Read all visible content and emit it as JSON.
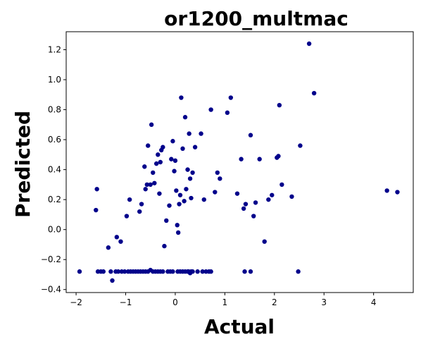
{
  "chart_data": {
    "type": "scatter",
    "title": "or1200_multmac",
    "xlabel": "Actual",
    "ylabel": "Predicted",
    "xlim": [
      -2.2,
      4.8
    ],
    "ylim": [
      -0.42,
      1.32
    ],
    "xticks": [
      -2,
      -1,
      0,
      1,
      2,
      3,
      4
    ],
    "yticks": [
      -0.4,
      -0.2,
      0.0,
      0.2,
      0.4,
      0.6,
      0.8,
      1.0,
      1.2
    ],
    "xtick_labels": [
      "−2",
      "−1",
      "0",
      "1",
      "2",
      "3",
      "4"
    ],
    "ytick_labels": [
      "−0.4",
      "−0.2",
      "0.0",
      "0.2",
      "0.4",
      "0.6",
      "0.8",
      "1.0",
      "1.2"
    ],
    "grid": false,
    "marker_color": "#00008b",
    "series": [
      {
        "x": [
          -1.93,
          -1.56,
          -1.5,
          -1.45,
          -1.3,
          -1.27,
          -1.2,
          -1.15,
          -1.08,
          -1.02,
          -0.95,
          -0.9,
          -0.85,
          -0.8,
          -0.75,
          -0.7,
          -0.65,
          -0.6,
          -0.55,
          -0.5,
          -0.45,
          -0.4,
          -0.35,
          -0.3,
          -0.25,
          -0.15,
          -0.1,
          -0.05,
          0.05,
          0.1,
          0.15,
          0.2,
          0.25,
          0.27,
          0.3,
          0.32,
          0.35,
          0.45,
          0.55,
          0.62,
          0.68,
          0.72,
          1.4,
          1.52,
          2.48,
          -1.6,
          -1.58,
          -1.35,
          -1.18,
          -1.1,
          -0.98,
          -0.92,
          -0.72,
          -0.68,
          -0.62,
          -0.6,
          -0.57,
          -0.55,
          -0.5,
          -0.48,
          -0.45,
          -0.42,
          -0.38,
          -0.35,
          -0.32,
          -0.3,
          -0.28,
          -0.25,
          -0.22,
          -0.18,
          -0.12,
          -0.08,
          -0.05,
          -0.02,
          0.0,
          0.02,
          0.04,
          0.06,
          0.08,
          0.1,
          0.12,
          0.15,
          0.18,
          0.2,
          0.22,
          0.25,
          0.28,
          0.3,
          0.32,
          0.35,
          0.4,
          0.52,
          0.58,
          0.72,
          0.8,
          0.85,
          0.9,
          1.05,
          1.12,
          1.25,
          1.33,
          1.38,
          1.42,
          1.52,
          1.58,
          1.62,
          1.7,
          1.8,
          1.88,
          1.95,
          2.05,
          2.08,
          2.1,
          2.15,
          2.35,
          2.52,
          2.7,
          2.8,
          4.27,
          4.48
        ],
        "y": [
          -0.28,
          -0.28,
          -0.28,
          -0.28,
          -0.28,
          -0.34,
          -0.28,
          -0.28,
          -0.28,
          -0.28,
          -0.28,
          -0.28,
          -0.28,
          -0.28,
          -0.28,
          -0.28,
          -0.28,
          -0.28,
          -0.28,
          -0.27,
          -0.28,
          -0.28,
          -0.28,
          -0.28,
          -0.28,
          -0.28,
          -0.28,
          -0.28,
          -0.28,
          -0.28,
          -0.28,
          -0.28,
          -0.28,
          -0.28,
          -0.29,
          -0.28,
          -0.28,
          -0.28,
          -0.28,
          -0.28,
          -0.28,
          -0.28,
          -0.28,
          -0.28,
          -0.28,
          0.13,
          0.27,
          -0.12,
          -0.05,
          -0.08,
          0.09,
          0.2,
          0.12,
          0.17,
          0.42,
          0.27,
          0.3,
          0.56,
          0.3,
          0.7,
          0.38,
          0.31,
          0.44,
          0.5,
          0.24,
          0.45,
          0.53,
          0.55,
          -0.11,
          0.06,
          0.16,
          0.47,
          0.59,
          0.39,
          0.46,
          0.26,
          0.03,
          -0.02,
          0.17,
          0.23,
          0.88,
          0.54,
          0.19,
          0.75,
          0.27,
          0.4,
          0.64,
          0.34,
          0.21,
          0.38,
          0.55,
          0.64,
          0.2,
          0.8,
          0.25,
          0.38,
          0.34,
          0.78,
          0.88,
          0.24,
          0.47,
          0.14,
          0.17,
          0.63,
          0.09,
          0.18,
          0.47,
          -0.08,
          0.2,
          0.23,
          0.48,
          0.49,
          0.83,
          0.3,
          0.22,
          0.56,
          1.24,
          0.91,
          0.26,
          0.25
        ]
      }
    ]
  }
}
